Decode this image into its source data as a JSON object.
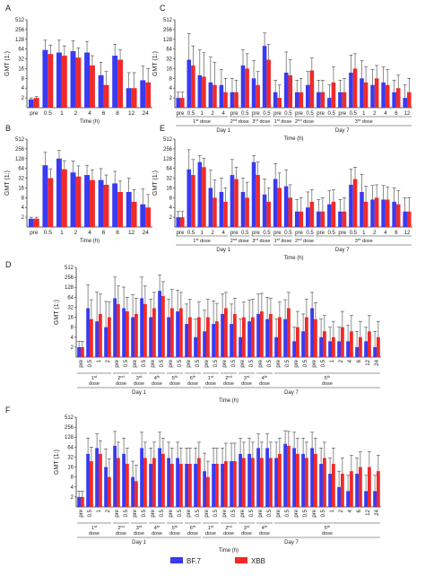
{
  "colors": {
    "bf7": "#3a3af0",
    "xbb": "#f02a2a",
    "axis": "#333333",
    "error": "#444444"
  },
  "legend": [
    {
      "name": "BF.7",
      "color": "#3a3af0"
    },
    {
      "name": "XBB",
      "color": "#f02a2a"
    }
  ],
  "chart_data": [
    {
      "panel": "A",
      "type": "bar",
      "ylabel": "GMT (1:)",
      "xlabel": "Time (h)",
      "yticks": [
        "2",
        "4",
        "8",
        "16",
        "32",
        "64",
        "128",
        "256",
        "512"
      ],
      "categories": [
        "pre",
        "0.5",
        "1",
        "2",
        "4",
        "6",
        "8",
        "12",
        "24"
      ],
      "series": [
        {
          "name": "BF.7",
          "values": [
            1.8,
            60,
            50,
            55,
            50,
            10,
            40,
            4,
            7
          ],
          "err": [
            0.2,
            60,
            70,
            60,
            60,
            15,
            50,
            8,
            12
          ]
        },
        {
          "name": "XBB",
          "values": [
            2,
            45,
            40,
            35,
            20,
            5,
            30,
            4,
            6
          ],
          "err": [
            0.2,
            40,
            40,
            35,
            20,
            8,
            30,
            8,
            10
          ]
        }
      ],
      "groups": []
    },
    {
      "panel": "B",
      "type": "bar",
      "ylabel": "GMT (1:)",
      "xlabel": "Time (h)",
      "yticks": [
        "2",
        "4",
        "8",
        "16",
        "32",
        "64",
        "128",
        "256",
        "512"
      ],
      "categories": [
        "pre",
        "0.5",
        "1",
        "2",
        "4",
        "6",
        "8",
        "12",
        "24"
      ],
      "series": [
        {
          "name": "BF.7",
          "values": [
            1.8,
            80,
            128,
            48,
            40,
            28,
            22,
            12,
            5
          ],
          "err": [
            0.2,
            120,
            100,
            60,
            40,
            35,
            30,
            20,
            10
          ]
        },
        {
          "name": "XBB",
          "values": [
            1.8,
            32,
            60,
            36,
            28,
            20,
            12,
            6,
            4
          ],
          "err": [
            0.2,
            30,
            50,
            40,
            30,
            20,
            14,
            8,
            6
          ]
        }
      ],
      "groups": []
    },
    {
      "panel": "C",
      "type": "bar",
      "ylabel": "GMT (1:)",
      "xlabel": "Time (h)",
      "yticks": [
        "2",
        "4",
        "8",
        "16",
        "32",
        "64",
        "128",
        "256",
        "512"
      ],
      "categories": [
        "pre",
        "0.5",
        "1",
        "2",
        "4",
        "pre",
        "0.5",
        "pre",
        "0.5",
        "pre",
        "0.5",
        "pre",
        "0.5",
        "pre",
        "0.5",
        "pre",
        "0.5",
        "1",
        "2",
        "4",
        "6",
        "12"
      ],
      "series": [
        {
          "name": "BF.7",
          "values": [
            2,
            30,
            10,
            6,
            5,
            3,
            20,
            8,
            80,
            3,
            12,
            3,
            5,
            3,
            2,
            3,
            12,
            8,
            5,
            6,
            3,
            2
          ],
          "err": [
            1,
            160,
            50,
            30,
            10,
            5,
            40,
            20,
            120,
            4,
            40,
            4,
            8,
            4,
            3,
            4,
            30,
            20,
            10,
            12,
            4,
            3
          ]
        },
        {
          "name": "XBB",
          "values": [
            2,
            20,
            9,
            5,
            3,
            3,
            16,
            5,
            30,
            2,
            10,
            3,
            14,
            3,
            6,
            3,
            16,
            6,
            8,
            5,
            4,
            3
          ],
          "err": [
            1,
            60,
            40,
            20,
            5,
            4,
            30,
            8,
            60,
            3,
            20,
            5,
            20,
            4,
            12,
            5,
            30,
            12,
            12,
            10,
            6,
            5
          ]
        }
      ],
      "groups": [
        {
          "label": "1st dose",
          "from": 0,
          "to": 4,
          "sup": "st"
        },
        {
          "label": "2nd dose",
          "from": 5,
          "to": 6,
          "sup": "nd"
        },
        {
          "label": "3rd dose",
          "from": 7,
          "to": 8,
          "sup": "rd"
        },
        {
          "label": "1st dose",
          "from": 9,
          "to": 10,
          "sup": "st"
        },
        {
          "label": "2nd dose",
          "from": 11,
          "to": 12,
          "sup": "nd"
        },
        {
          "label": "3rd dose",
          "from": 13,
          "to": 21,
          "sup": "rd"
        }
      ],
      "days": [
        {
          "label": "Day 1",
          "from": 0,
          "to": 8
        },
        {
          "label": "Day 7",
          "from": 9,
          "to": 21
        }
      ]
    },
    {
      "panel": "E",
      "type": "bar",
      "ylabel": "GMT (1:)",
      "xlabel": "Time (h)",
      "yticks": [
        "2",
        "4",
        "8",
        "16",
        "32",
        "64",
        "128",
        "256",
        "512"
      ],
      "categories": [
        "pre",
        "0.5",
        "1",
        "2",
        "4",
        "pre",
        "0.5",
        "pre",
        "0.5",
        "pre",
        "0.5",
        "pre",
        "0.5",
        "pre",
        "0.5",
        "pre",
        "0.5",
        "1",
        "2",
        "4",
        "6",
        "12"
      ],
      "series": [
        {
          "name": "BF.7",
          "values": [
            2,
            60,
            100,
            16,
            12,
            40,
            12,
            100,
            10,
            30,
            18,
            3,
            4,
            3,
            5,
            3,
            20,
            12,
            7,
            7,
            6,
            3
          ],
          "err": [
            1,
            180,
            60,
            40,
            20,
            80,
            20,
            60,
            20,
            60,
            40,
            4,
            8,
            4,
            8,
            4,
            40,
            30,
            12,
            12,
            10,
            5
          ]
        },
        {
          "name": "XBB",
          "values": [
            2,
            40,
            70,
            8,
            6,
            30,
            8,
            40,
            6,
            16,
            8,
            3,
            6,
            3,
            6,
            3,
            30,
            6,
            8,
            7,
            5,
            3
          ],
          "err": [
            1,
            80,
            60,
            20,
            10,
            40,
            16,
            60,
            10,
            30,
            12,
            5,
            8,
            5,
            8,
            5,
            40,
            12,
            12,
            10,
            8,
            5
          ]
        }
      ],
      "groups": [
        {
          "label": "1st dose",
          "from": 0,
          "to": 4,
          "sup": "st"
        },
        {
          "label": "2nd dose",
          "from": 5,
          "to": 6,
          "sup": "nd"
        },
        {
          "label": "3rd dose",
          "from": 7,
          "to": 8,
          "sup": "rd"
        },
        {
          "label": "1st dose",
          "from": 9,
          "to": 10,
          "sup": "st"
        },
        {
          "label": "2nd dose",
          "from": 11,
          "to": 12,
          "sup": "nd"
        },
        {
          "label": "3rd dose",
          "from": 13,
          "to": 21,
          "sup": "rd"
        }
      ],
      "days": [
        {
          "label": "Day 1",
          "from": 0,
          "to": 8
        },
        {
          "label": "Day 7",
          "from": 9,
          "to": 21
        }
      ]
    },
    {
      "panel": "D",
      "type": "bar",
      "ylabel": "GMT (1:)",
      "xlabel": "Time (h)",
      "yticks": [
        "2",
        "4",
        "8",
        "16",
        "32",
        "64",
        "128",
        "256",
        "512"
      ],
      "categories": [
        "pre",
        "0.5",
        "1",
        "2",
        "pre",
        "0.5",
        "pre",
        "0.5",
        "pre",
        "0.5",
        "pre",
        "0.5",
        "pre",
        "0.5",
        "pre",
        "0.5",
        "pre",
        "0.5",
        "pre",
        "0.5",
        "pre",
        "0.5",
        "pre",
        "0.5",
        "pre",
        "0.5",
        "pre",
        "0.5",
        "1",
        "2",
        "4",
        "6",
        "12",
        "24"
      ],
      "series": [
        {
          "name": "BF.7",
          "values": [
            2,
            30,
            12,
            8,
            60,
            30,
            16,
            60,
            16,
            100,
            16,
            24,
            10,
            4,
            6,
            10,
            20,
            10,
            4,
            12,
            20,
            14,
            4,
            14,
            3,
            6,
            30,
            4,
            3,
            3,
            3,
            2,
            3,
            2
          ],
          "err": [
            1,
            120,
            80,
            40,
            200,
            100,
            60,
            200,
            40,
            200,
            40,
            80,
            30,
            10,
            20,
            40,
            60,
            30,
            10,
            40,
            60,
            50,
            10,
            40,
            5,
            14,
            60,
            10,
            5,
            5,
            6,
            4,
            5,
            4
          ],
          "err_note": "approx"
        },
        {
          "name": "XBB",
          "values": [
            2,
            14,
            20,
            16,
            40,
            24,
            20,
            40,
            30,
            70,
            30,
            30,
            16,
            16,
            16,
            12,
            30,
            20,
            16,
            16,
            24,
            20,
            16,
            30,
            8,
            16,
            14,
            6,
            4,
            8,
            6,
            4,
            6,
            4
          ],
          "err": [
            1,
            40,
            60,
            30,
            100,
            40,
            40,
            100,
            60,
            120,
            80,
            60,
            40,
            30,
            40,
            30,
            60,
            40,
            30,
            40,
            60,
            40,
            30,
            60,
            16,
            40,
            30,
            12,
            8,
            16,
            12,
            8,
            12,
            8
          ]
        }
      ],
      "groups": [
        {
          "label": "1st dose",
          "from": 0,
          "to": 3,
          "sup": "st"
        },
        {
          "label": "2nd dose",
          "from": 4,
          "to": 5,
          "sup": "nd"
        },
        {
          "label": "3rd dose",
          "from": 6,
          "to": 7,
          "sup": "rd"
        },
        {
          "label": "4th dose",
          "from": 8,
          "to": 9,
          "sup": "th"
        },
        {
          "label": "5th dose",
          "from": 10,
          "to": 11,
          "sup": "th"
        },
        {
          "label": "6th dose",
          "from": 12,
          "to": 13,
          "sup": "th"
        },
        {
          "label": "1st dose",
          "from": 14,
          "to": 15,
          "sup": "st"
        },
        {
          "label": "2nd dose",
          "from": 16,
          "to": 17,
          "sup": "nd"
        },
        {
          "label": "3rd dose",
          "from": 18,
          "to": 19,
          "sup": "rd"
        },
        {
          "label": "4th dose",
          "from": 20,
          "to": 21,
          "sup": "th"
        },
        {
          "label": "5th dose",
          "from": 22,
          "to": 33,
          "sup": "th"
        }
      ],
      "days": [
        {
          "label": "Day 1",
          "from": 0,
          "to": 13
        },
        {
          "label": "Day 7",
          "from": 14,
          "to": 33
        }
      ]
    },
    {
      "panel": "F",
      "type": "bar",
      "ylabel": "GMT (1:)",
      "xlabel": "Time (h)",
      "yticks": [
        "2",
        "4",
        "8",
        "16",
        "32",
        "64",
        "128",
        "256",
        "512"
      ],
      "categories": [
        "pre",
        "0.5",
        "1",
        "2",
        "pre",
        "0.5",
        "pre",
        "0.5",
        "pre",
        "0.5",
        "pre",
        "0.5",
        "pre",
        "0.5",
        "pre",
        "0.5",
        "pre",
        "0.5",
        "pre",
        "0.5",
        "pre",
        "0.5",
        "pre",
        "0.5",
        "pre",
        "0.5",
        "pre",
        "0.5",
        "1",
        "2",
        "4",
        "6",
        "12",
        "24"
      ],
      "series": [
        {
          "name": "BF.7",
          "values": [
            2,
            40,
            60,
            16,
            70,
            40,
            8,
            60,
            20,
            60,
            30,
            30,
            20,
            20,
            12,
            20,
            20,
            24,
            40,
            40,
            60,
            60,
            30,
            80,
            60,
            40,
            60,
            20,
            10,
            4,
            3,
            10,
            3,
            3
          ],
          "err": [
            1,
            80,
            100,
            40,
            120,
            80,
            16,
            120,
            40,
            120,
            60,
            60,
            40,
            40,
            30,
            40,
            40,
            60,
            80,
            80,
            100,
            100,
            60,
            120,
            120,
            80,
            120,
            40,
            20,
            8,
            6,
            20,
            6,
            6
          ]
        },
        {
          "name": "XBB",
          "values": [
            2,
            24,
            40,
            8,
            30,
            20,
            6,
            30,
            30,
            40,
            20,
            20,
            20,
            30,
            8,
            20,
            24,
            24,
            30,
            30,
            30,
            30,
            40,
            70,
            40,
            30,
            40,
            30,
            20,
            10,
            12,
            16,
            16,
            12
          ],
          "err": [
            1,
            40,
            60,
            20,
            60,
            40,
            12,
            60,
            60,
            80,
            40,
            40,
            40,
            60,
            16,
            40,
            60,
            60,
            60,
            60,
            60,
            60,
            80,
            120,
            80,
            60,
            80,
            60,
            40,
            20,
            24,
            30,
            30,
            24
          ]
        }
      ],
      "groups": [
        {
          "label": "1st dose",
          "from": 0,
          "to": 3,
          "sup": "st"
        },
        {
          "label": "2nd dose",
          "from": 4,
          "to": 5,
          "sup": "nd"
        },
        {
          "label": "3rd dose",
          "from": 6,
          "to": 7,
          "sup": "rd"
        },
        {
          "label": "4th dose",
          "from": 8,
          "to": 9,
          "sup": "th"
        },
        {
          "label": "5th dose",
          "from": 10,
          "to": 11,
          "sup": "th"
        },
        {
          "label": "6th dose",
          "from": 12,
          "to": 13,
          "sup": "th"
        },
        {
          "label": "1st dose",
          "from": 14,
          "to": 15,
          "sup": "st"
        },
        {
          "label": "2nd dose",
          "from": 16,
          "to": 17,
          "sup": "nd"
        },
        {
          "label": "3rd dose",
          "from": 18,
          "to": 19,
          "sup": "rd"
        },
        {
          "label": "4th dose",
          "from": 20,
          "to": 21,
          "sup": "th"
        },
        {
          "label": "5th dose",
          "from": 22,
          "to": 33,
          "sup": "th"
        }
      ],
      "days": [
        {
          "label": "Day 1",
          "from": 0,
          "to": 13
        },
        {
          "label": "Day 7",
          "from": 14,
          "to": 33
        }
      ]
    }
  ]
}
